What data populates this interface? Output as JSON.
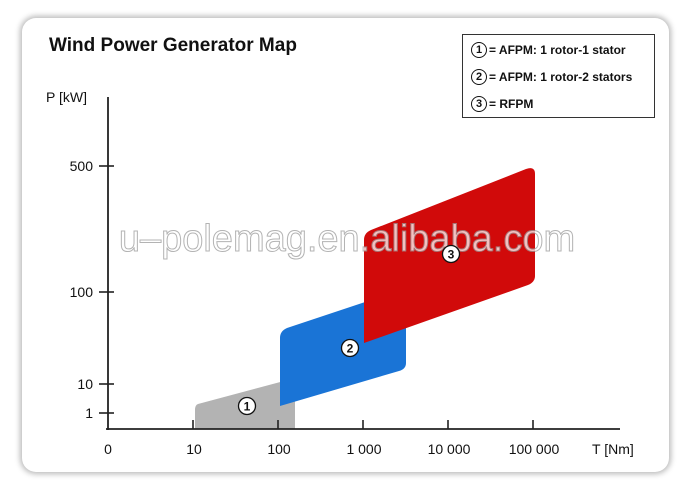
{
  "title": "Wind Power Generator Map",
  "legend": [
    {
      "num": "1",
      "label": "= AFPM: 1 rotor-1 stator"
    },
    {
      "num": "2",
      "label": "= AFPM: 1 rotor-2 stators"
    },
    {
      "num": "3",
      "label": "= RFPM"
    }
  ],
  "watermark": "u–polemag.en.alibaba.com",
  "colors": {
    "region1": "#b3b3b3",
    "region2": "#1a74d6",
    "region3": "#d10a0a",
    "axis": "#222222"
  },
  "chart_data": {
    "type": "area",
    "xlabel": "T [Nm]",
    "ylabel": "P [kW]",
    "x_scale": "log",
    "y_scale": "log",
    "x_ticks": [
      "0",
      "10",
      "100",
      "1 000",
      "10 000",
      "100 000"
    ],
    "y_ticks": [
      "1",
      "10",
      "100",
      "500"
    ],
    "regions": [
      {
        "label": "1",
        "name": "AFPM: 1 rotor-1 stator",
        "t_range": [
          10,
          150
        ],
        "p_range": [
          1,
          12
        ]
      },
      {
        "label": "2",
        "name": "AFPM: 1 rotor-2 stators",
        "t_range": [
          100,
          3000
        ],
        "p_range": [
          10,
          110
        ]
      },
      {
        "label": "3",
        "name": "RFPM",
        "t_range": [
          1000,
          100000
        ],
        "p_range": [
          100,
          500
        ]
      }
    ]
  }
}
